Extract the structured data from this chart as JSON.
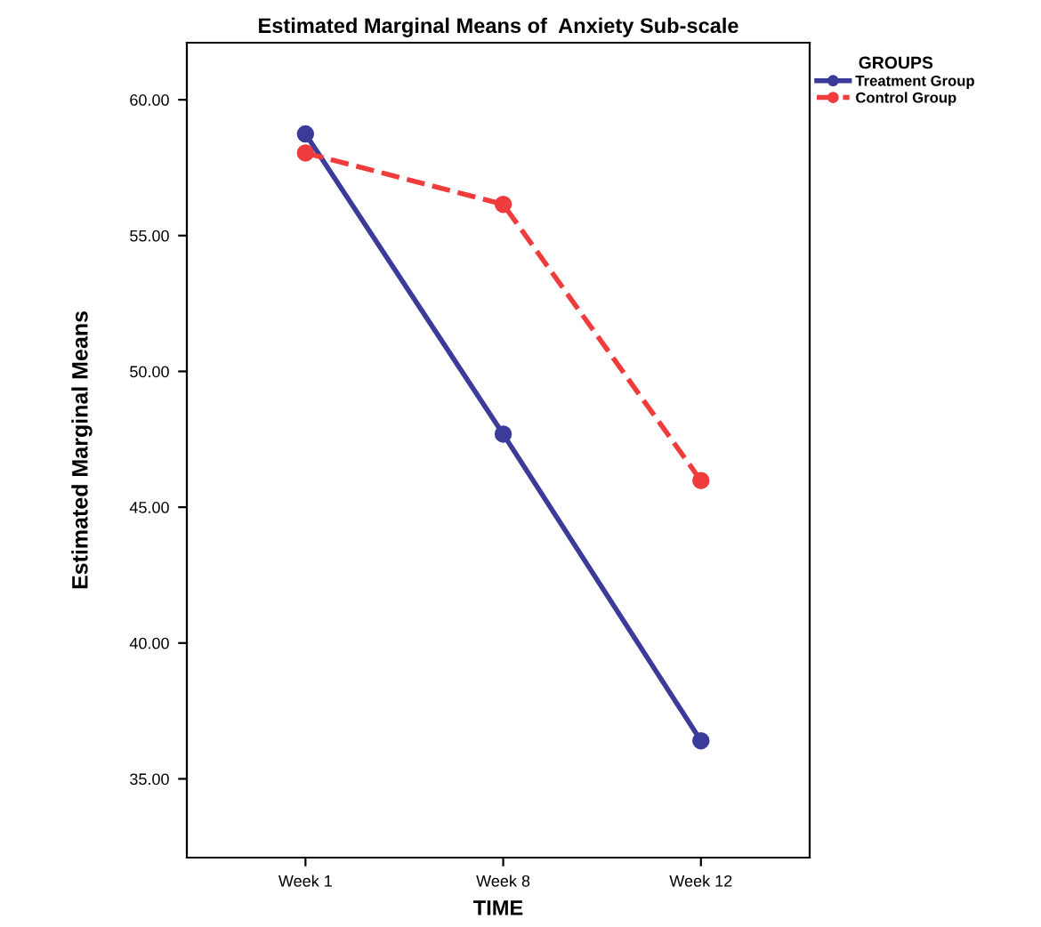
{
  "chart_data": {
    "type": "line",
    "title": "Estimated Marginal Means of  Anxiety Sub-scale",
    "xlabel": "TIME",
    "ylabel": "Estimated Marginal Means",
    "legend_title": "GROUPS",
    "categories": [
      "Week 1",
      "Week 8",
      "Week 12"
    ],
    "series": [
      {
        "name": "Treatment Group",
        "color": "#3b3b9a",
        "values": [
          58.74,
          47.69,
          36.4
        ],
        "line_style": "solid"
      },
      {
        "name": "Control Group",
        "color": "#f03c3c",
        "values": [
          58.04,
          56.15,
          45.98
        ],
        "line_style": "dashed"
      }
    ],
    "ylim": [
      32.1,
      62.1
    ],
    "yticks": [
      {
        "value": 35,
        "label": "35.00"
      },
      {
        "value": 40,
        "label": "40.00"
      },
      {
        "value": 45,
        "label": "45.00"
      },
      {
        "value": 50,
        "label": "50.00"
      },
      {
        "value": 55,
        "label": "55.00"
      },
      {
        "value": 60,
        "label": "60.00"
      }
    ],
    "grid": false,
    "legend": "top right",
    "marker": "circle"
  }
}
